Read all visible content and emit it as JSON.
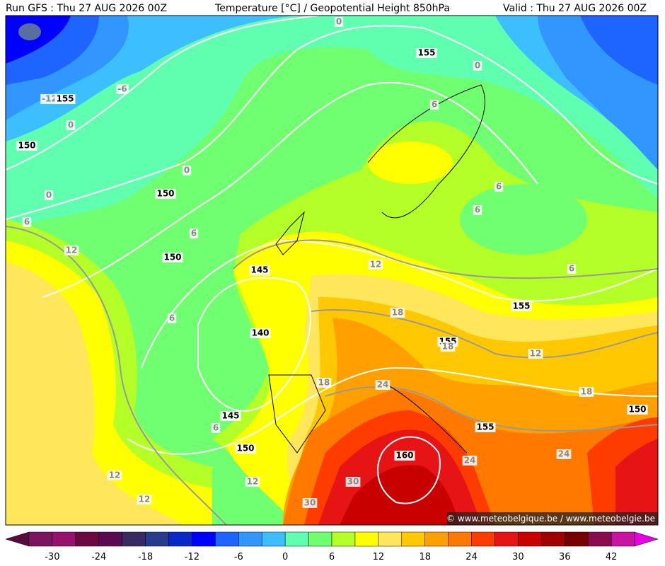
{
  "header": {
    "left": "Run GFS : Thu 27 AUG 2026 00Z",
    "center": "Temperature [°C] / Geopotential Height 850hPa",
    "right": "Valid : Thu 27 AUG 2026 00Z"
  },
  "map": {
    "contour_labels": [
      -12,
      155,
      -6,
      0,
      0,
      155,
      0,
      150,
      0,
      0,
      150,
      6,
      6,
      6,
      6,
      6,
      12,
      150,
      145,
      12,
      6,
      155,
      6,
      18,
      140,
      155,
      18,
      12,
      18,
      24,
      18,
      150,
      145,
      6,
      155,
      150,
      160,
      24,
      24,
      12,
      12,
      30,
      12,
      30
    ],
    "watermark": "© www.meteobelgique.be / www.meteobelgie.be"
  },
  "colorbar": {
    "ticks": [
      -30,
      -24,
      -18,
      -12,
      -6,
      0,
      6,
      12,
      18,
      24,
      30,
      36,
      42
    ],
    "colors": [
      "#5a0a3c",
      "#7a1660",
      "#96126e",
      "#6a0a40",
      "#5a0a50",
      "#3a2a64",
      "#283c8c",
      "#0a28c8",
      "#0000ff",
      "#1e64ff",
      "#3296ff",
      "#3cbeff",
      "#60ffb0",
      "#70ff70",
      "#b4ff28",
      "#ffff00",
      "#ffe65a",
      "#ffc800",
      "#ffa000",
      "#ff7800",
      "#ff3c00",
      "#e61414",
      "#c80000",
      "#a00000",
      "#780000",
      "#8c0a50",
      "#c814a0",
      "#e600e6"
    ]
  }
}
